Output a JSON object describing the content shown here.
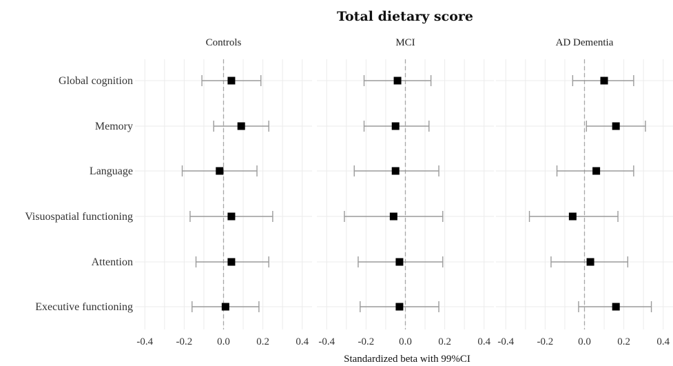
{
  "chart_data": {
    "type": "forest",
    "title": "Total dietary score",
    "xlabel": "Standardized beta with 99%CI",
    "xlim": [
      -0.45,
      0.45
    ],
    "xticks": [
      "-0.4",
      "-0.2",
      "0.0",
      "0.2",
      "0.4"
    ],
    "xtick_values": [
      -0.4,
      -0.2,
      0.0,
      0.2,
      0.4
    ],
    "reference_line": 0,
    "grid": true,
    "outcomes": [
      "Global cognition",
      "Memory",
      "Language",
      "Visuospatial functioning",
      "Attention",
      "Executive functioning"
    ],
    "panels": [
      {
        "label": "Controls",
        "estimates": [
          {
            "outcome": "Global cognition",
            "beta": 0.04,
            "lower": -0.11,
            "upper": 0.19
          },
          {
            "outcome": "Memory",
            "beta": 0.09,
            "lower": -0.05,
            "upper": 0.23
          },
          {
            "outcome": "Language",
            "beta": -0.02,
            "lower": -0.21,
            "upper": 0.17
          },
          {
            "outcome": "Visuospatial functioning",
            "beta": 0.04,
            "lower": -0.17,
            "upper": 0.25
          },
          {
            "outcome": "Attention",
            "beta": 0.04,
            "lower": -0.14,
            "upper": 0.23
          },
          {
            "outcome": "Executive functioning",
            "beta": 0.01,
            "lower": -0.16,
            "upper": 0.18
          }
        ]
      },
      {
        "label": "MCI",
        "estimates": [
          {
            "outcome": "Global cognition",
            "beta": -0.04,
            "lower": -0.21,
            "upper": 0.13
          },
          {
            "outcome": "Memory",
            "beta": -0.05,
            "lower": -0.21,
            "upper": 0.12
          },
          {
            "outcome": "Language",
            "beta": -0.05,
            "lower": -0.26,
            "upper": 0.17
          },
          {
            "outcome": "Visuospatial functioning",
            "beta": -0.06,
            "lower": -0.31,
            "upper": 0.19
          },
          {
            "outcome": "Attention",
            "beta": -0.03,
            "lower": -0.24,
            "upper": 0.19
          },
          {
            "outcome": "Executive functioning",
            "beta": -0.03,
            "lower": -0.23,
            "upper": 0.17
          }
        ]
      },
      {
        "label": "AD Dementia",
        "estimates": [
          {
            "outcome": "Global cognition",
            "beta": 0.1,
            "lower": -0.06,
            "upper": 0.25
          },
          {
            "outcome": "Memory",
            "beta": 0.16,
            "lower": 0.01,
            "upper": 0.31
          },
          {
            "outcome": "Language",
            "beta": 0.06,
            "lower": -0.14,
            "upper": 0.25
          },
          {
            "outcome": "Visuospatial functioning",
            "beta": -0.06,
            "lower": -0.28,
            "upper": 0.17
          },
          {
            "outcome": "Attention",
            "beta": 0.03,
            "lower": -0.17,
            "upper": 0.22
          },
          {
            "outcome": "Executive functioning",
            "beta": 0.16,
            "lower": -0.03,
            "upper": 0.34
          }
        ]
      }
    ],
    "colors": {
      "point": "#000000",
      "ci": "#9a9a9a",
      "reference": "#a6a6a6",
      "grid": "#ebebeb",
      "text": "#333333"
    }
  }
}
